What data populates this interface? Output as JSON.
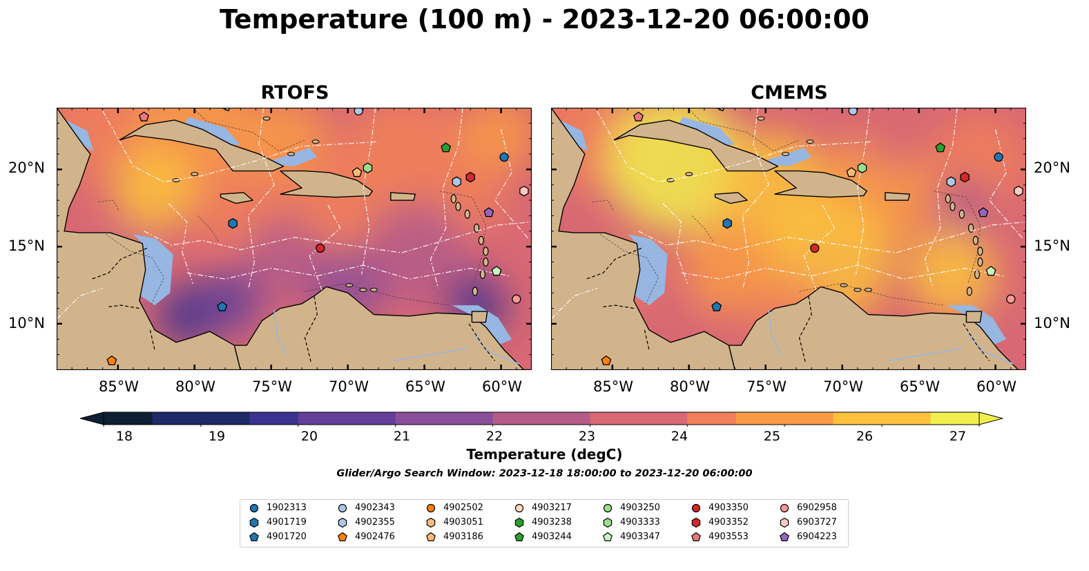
{
  "title": "Temperature (100 m) - 2023-12-20 06:00:00",
  "panels": [
    {
      "title": "RTOFS"
    },
    {
      "title": "CMEMS"
    }
  ],
  "map_extent": {
    "lon_min": -89,
    "lon_max": -58,
    "lat_min": 7,
    "lat_max": 24
  },
  "axes": {
    "lat_ticks": [
      "20°N",
      "15°N",
      "10°N"
    ],
    "lon_ticks": [
      "85°W",
      "80°W",
      "75°W",
      "70°W",
      "65°W",
      "60°W"
    ],
    "lat_values": [
      20,
      15,
      10
    ],
    "lon_values": [
      -85,
      -80,
      -75,
      -70,
      -65,
      -60
    ]
  },
  "colorbar": {
    "label": "Temperature (degC)",
    "ticks": [
      "18",
      "19",
      "20",
      "21",
      "22",
      "23",
      "24",
      "25",
      "26",
      "27"
    ],
    "tick_values": [
      18,
      19,
      20,
      21,
      22,
      23,
      24,
      25,
      26,
      27
    ],
    "range": [
      18,
      27
    ],
    "step": 0.5,
    "extend": "both",
    "colormap": [
      "#0e1e33",
      "#1d2a66",
      "#3a338f",
      "#623e99",
      "#8b4e98",
      "#b45c88",
      "#d86873",
      "#f0805a",
      "#f99b45",
      "#fcc23d",
      "#f1ef4e"
    ]
  },
  "colors": {
    "land": "#d2b48c",
    "shelf_water": "#97b6e2",
    "coastline": "#000000",
    "eez_lines": "#ffffff"
  },
  "search_window": "Glider/Argo Search Window: 2023-12-18 18:00:00 to 2023-12-20 06:00:00",
  "legend": {
    "columns": [
      [
        {
          "id": "1902313",
          "color": "#1f77b4",
          "marker": "circle"
        },
        {
          "id": "4901719",
          "color": "#1f77b4",
          "marker": "hexagon"
        },
        {
          "id": "4901720",
          "color": "#1f77b4",
          "marker": "pentagon"
        }
      ],
      [
        {
          "id": "4902343",
          "color": "#aec7e8",
          "marker": "circle"
        },
        {
          "id": "4902355",
          "color": "#aec7e8",
          "marker": "hexagon"
        },
        {
          "id": "4902476",
          "color": "#ff7f0e",
          "marker": "pentagon"
        }
      ],
      [
        {
          "id": "4902502",
          "color": "#ff7f0e",
          "marker": "circle"
        },
        {
          "id": "4903051",
          "color": "#ffbb78",
          "marker": "hexagon"
        },
        {
          "id": "4903186",
          "color": "#ffbb78",
          "marker": "pentagon"
        }
      ],
      [
        {
          "id": "4903217",
          "color": "#ffdab9",
          "marker": "circle"
        },
        {
          "id": "4903238",
          "color": "#2ca02c",
          "marker": "hexagon"
        },
        {
          "id": "4903244",
          "color": "#2ca02c",
          "marker": "pentagon"
        }
      ],
      [
        {
          "id": "4903250",
          "color": "#98df8a",
          "marker": "circle"
        },
        {
          "id": "4903333",
          "color": "#98df8a",
          "marker": "hexagon"
        },
        {
          "id": "4903347",
          "color": "#c7f5c0",
          "marker": "pentagon"
        }
      ],
      [
        {
          "id": "4903350",
          "color": "#d62728",
          "marker": "circle"
        },
        {
          "id": "4903352",
          "color": "#d62728",
          "marker": "hexagon"
        },
        {
          "id": "4903553",
          "color": "#e8787a",
          "marker": "pentagon"
        }
      ],
      [
        {
          "id": "6902958",
          "color": "#ff9896",
          "marker": "circle"
        },
        {
          "id": "6903727",
          "color": "#ffc9c4",
          "marker": "hexagon"
        },
        {
          "id": "6904223",
          "color": "#9467bd",
          "marker": "pentagon"
        }
      ]
    ]
  },
  "platforms": [
    {
      "id": "1902313",
      "lon": -59.8,
      "lat": 20.8
    },
    {
      "id": "4901719",
      "lon": -77.5,
      "lat": 16.5
    },
    {
      "id": "4901720",
      "lon": -78.2,
      "lat": 11.1
    },
    {
      "id": "4902343",
      "lon": -69.3,
      "lat": 23.8
    },
    {
      "id": "4902355",
      "lon": -62.9,
      "lat": 19.2
    },
    {
      "id": "4902476",
      "lon": -85.4,
      "lat": 7.6
    },
    {
      "id": "4903186",
      "lon": -69.4,
      "lat": 19.8
    },
    {
      "id": "4903244",
      "lon": -63.6,
      "lat": 21.4
    },
    {
      "id": "4903333",
      "lon": -68.7,
      "lat": 20.1
    },
    {
      "id": "4903347",
      "lon": -60.3,
      "lat": 13.4
    },
    {
      "id": "4903350",
      "lon": -71.8,
      "lat": 14.9
    },
    {
      "id": "4903352",
      "lon": -62.0,
      "lat": 19.5
    },
    {
      "id": "4903553",
      "lon": -83.3,
      "lat": 23.4
    },
    {
      "id": "6902958",
      "lon": -59.0,
      "lat": 11.6
    },
    {
      "id": "6903727",
      "lon": -58.5,
      "lat": 18.6
    },
    {
      "id": "6904223",
      "lon": -60.8,
      "lat": 17.2
    }
  ]
}
